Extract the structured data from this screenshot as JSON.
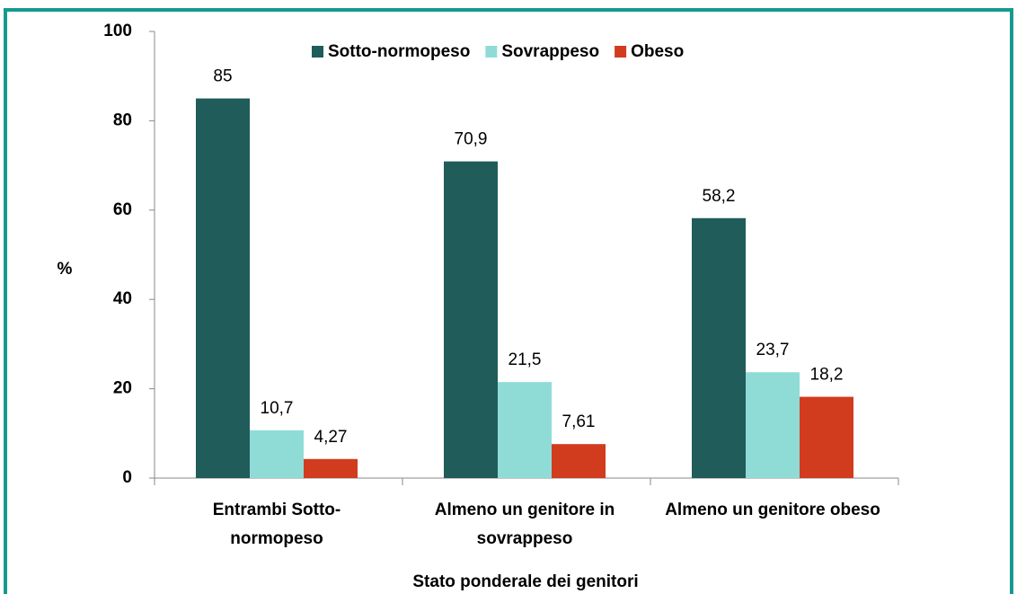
{
  "chart_data": {
    "type": "bar",
    "y_label": "%",
    "x_label": "Stato ponderale dei genitori",
    "categories": [
      "Entrambi Sotto-normopeso",
      "Almeno un genitore in sovrappeso",
      "Almeno un genitore obeso"
    ],
    "series": [
      {
        "name": "Sotto-normopeso",
        "color": "#1f5c5a",
        "values": [
          85,
          70.9,
          58.2
        ],
        "value_labels": [
          "85",
          "70,9",
          "58,2"
        ]
      },
      {
        "name": "Sovrappeso",
        "color": "#8fdcd7",
        "values": [
          10.7,
          21.5,
          23.7
        ],
        "value_labels": [
          "10,7",
          "21,5",
          "23,7"
        ]
      },
      {
        "name": "Obeso",
        "color": "#d13b1e",
        "values": [
          4.27,
          7.61,
          18.2
        ],
        "value_labels": [
          "4,27",
          "7,61",
          "18,2"
        ]
      }
    ],
    "ylim": [
      0,
      100
    ],
    "yticks": [
      0,
      20,
      40,
      60,
      80,
      100
    ],
    "legend": "top"
  }
}
